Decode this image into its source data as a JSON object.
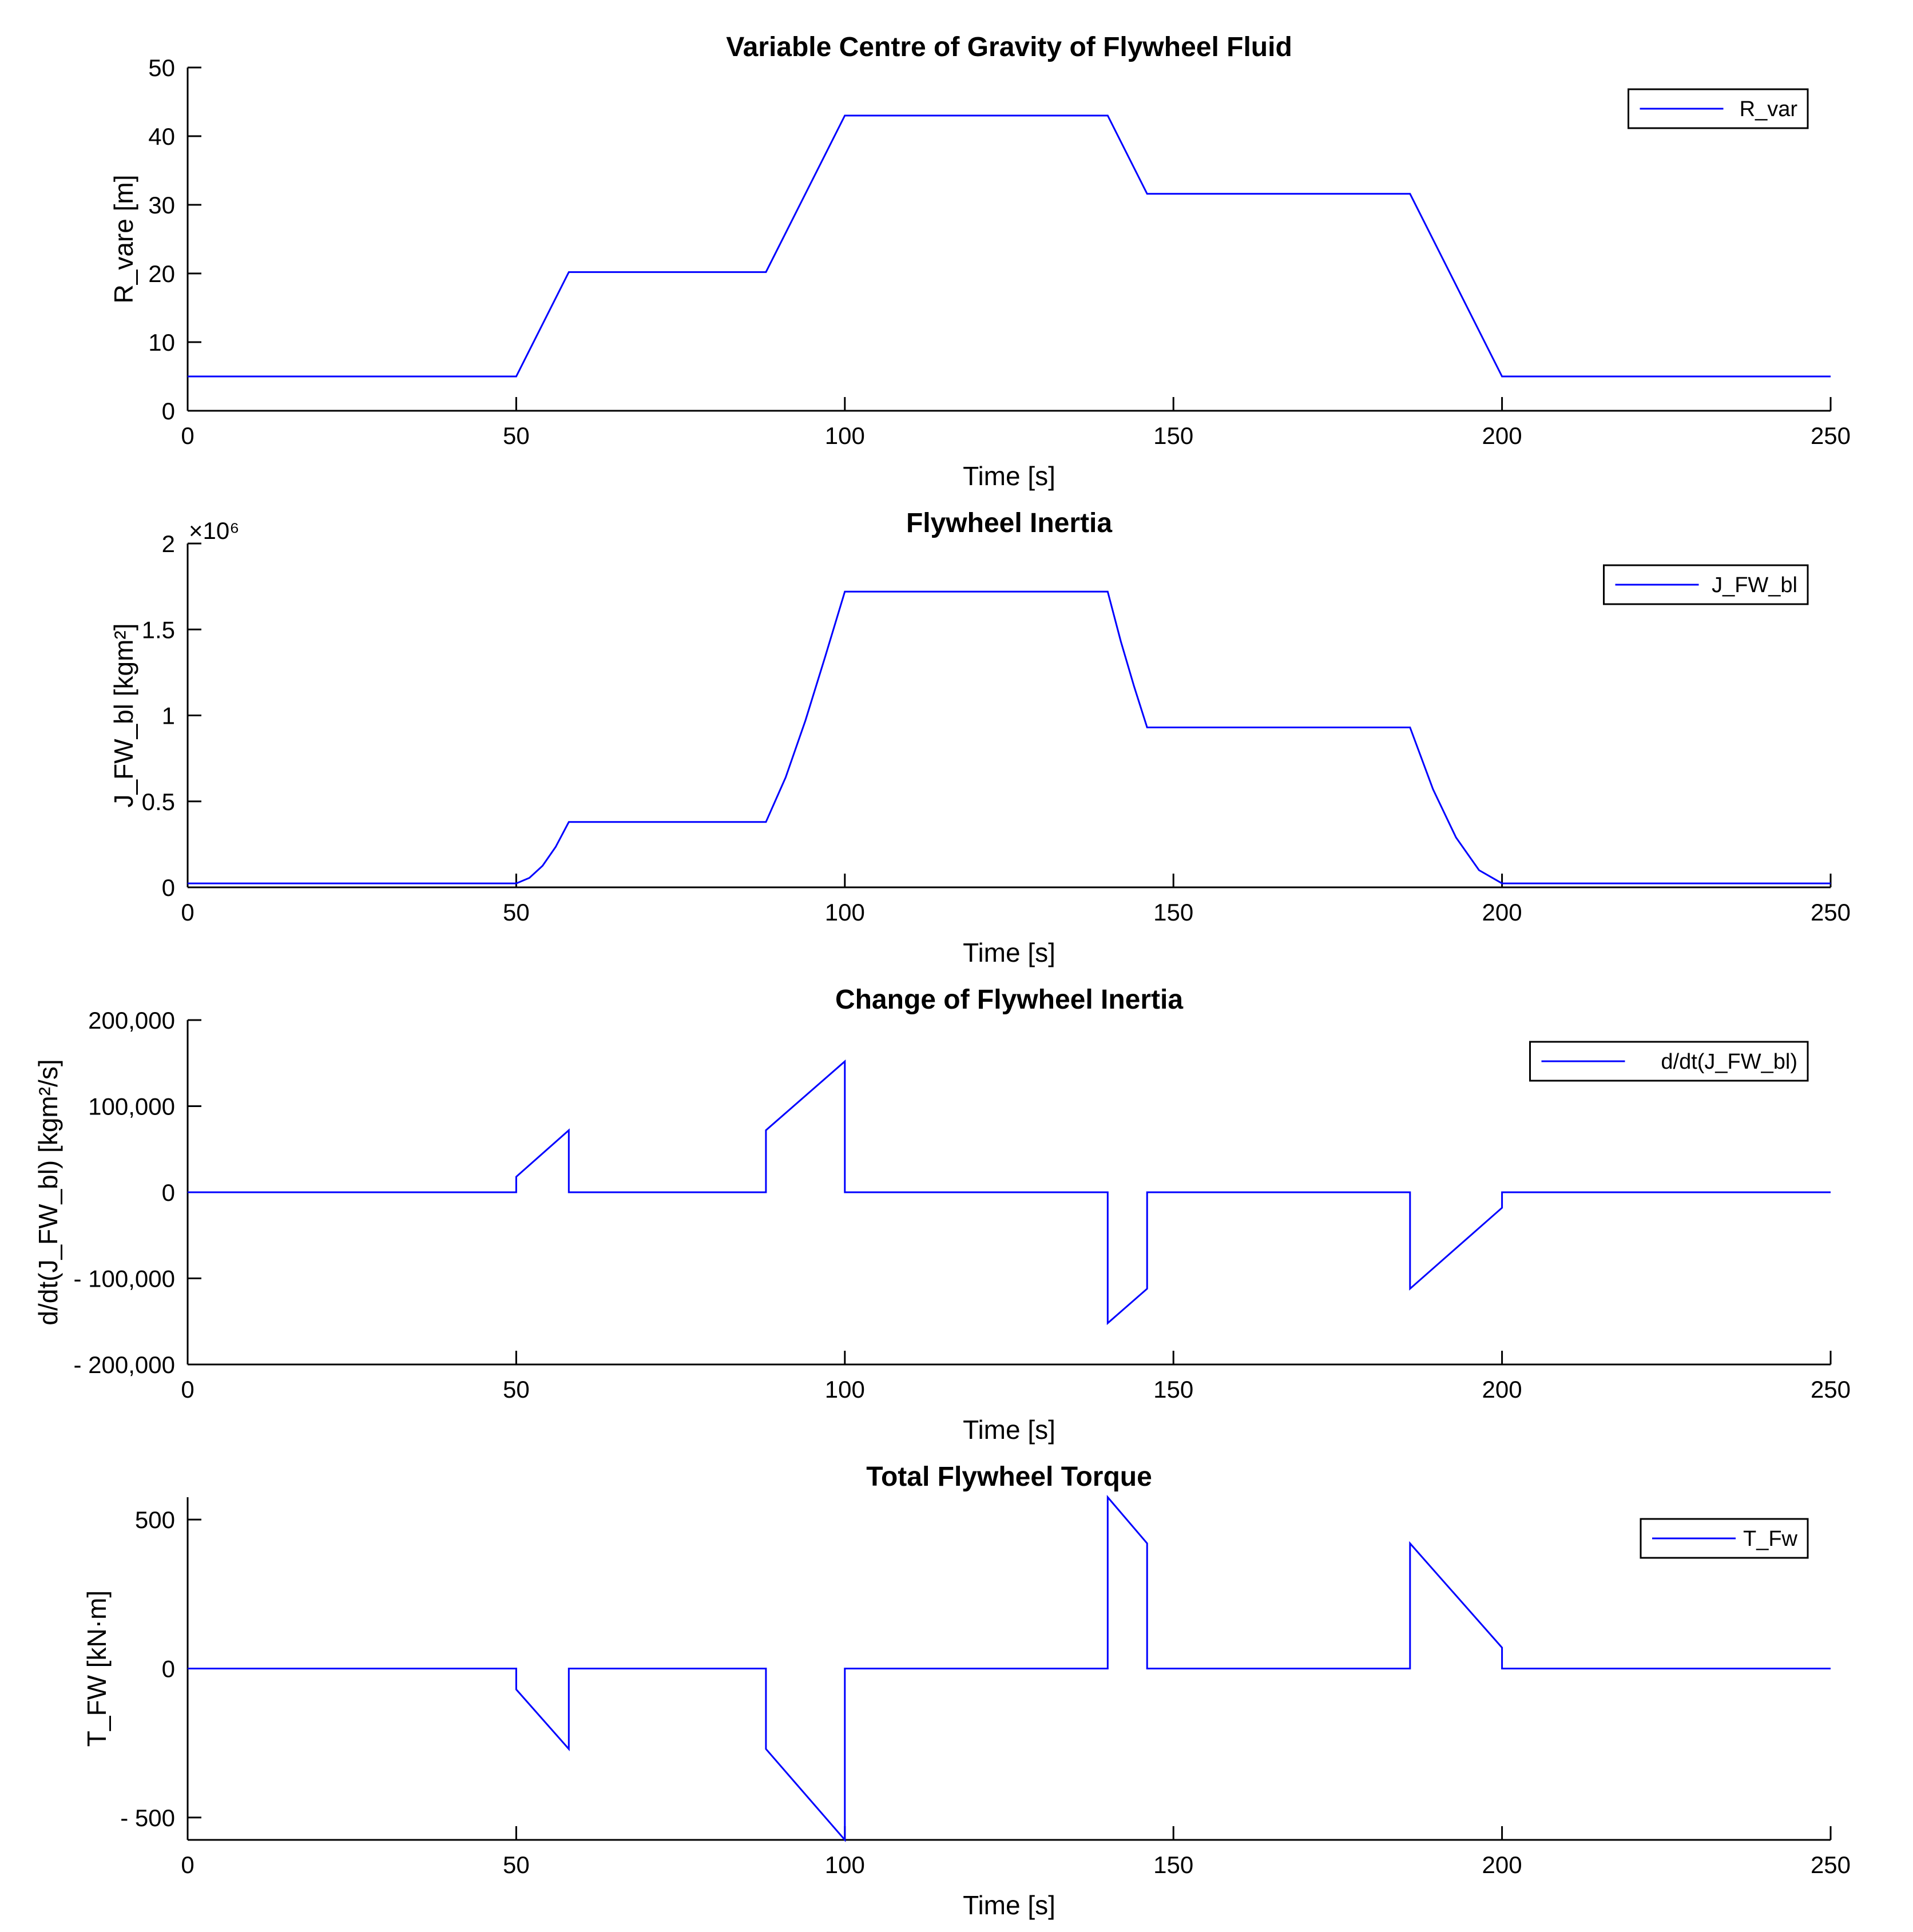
{
  "chart_data": [
    {
      "type": "line",
      "title": "Variable Centre of Gravity of Flywheel Fluid",
      "xlabel": "Time [s]",
      "ylabel": "R_vare  [m]",
      "xlim": [
        0,
        250
      ],
      "ylim": [
        0,
        50
      ],
      "xticks": [
        0,
        50,
        100,
        150,
        200,
        250
      ],
      "yticks": [
        0,
        10,
        20,
        30,
        40,
        50
      ],
      "ytick_labels": [
        "0",
        "10",
        "20",
        "30",
        "40",
        "50"
      ],
      "legend": "top-right",
      "series": [
        {
          "name": "R_var",
          "x": [
            0,
            50,
            58,
            88,
            100,
            140,
            146,
            186,
            200,
            250
          ],
          "y": [
            5,
            5,
            20.2,
            20.2,
            43,
            43,
            31.6,
            31.6,
            5,
            5
          ]
        }
      ]
    },
    {
      "type": "line",
      "title": "Flywheel Inertia",
      "xlabel": "Time [s]",
      "ylabel": "J_FW_bl  [kgm²]",
      "exponent_label": "×10⁶",
      "xlim": [
        0,
        250
      ],
      "ylim": [
        0,
        2
      ],
      "xticks": [
        0,
        50,
        100,
        150,
        200,
        250
      ],
      "yticks": [
        0,
        0.5,
        1,
        1.5,
        2
      ],
      "ytick_labels": [
        "0",
        "0.5",
        "1",
        "1.5",
        "2"
      ],
      "legend": "top-right",
      "series": [
        {
          "name": "J_FW_bl",
          "x": [
            0,
            50,
            52,
            54,
            56,
            58,
            88,
            91,
            94,
            97,
            100,
            140,
            142,
            144,
            146,
            186,
            189.5,
            193,
            196.5,
            200,
            250
          ],
          "y": [
            0.023,
            0.023,
            0.055,
            0.125,
            0.235,
            0.38,
            0.38,
            0.64,
            0.97,
            1.34,
            1.72,
            1.72,
            1.43,
            1.17,
            0.93,
            0.93,
            0.57,
            0.29,
            0.1,
            0.023,
            0.023
          ]
        }
      ]
    },
    {
      "type": "line",
      "title": "Change of Flywheel Inertia",
      "xlabel": "Time [s]",
      "ylabel": "d/dt(J_FW_bl)  [kgm²/s]",
      "xlim": [
        0,
        250
      ],
      "ylim": [
        -200000,
        200000
      ],
      "xticks": [
        0,
        50,
        100,
        150,
        200,
        250
      ],
      "yticks": [
        -200000,
        -100000,
        0,
        100000,
        200000
      ],
      "ytick_labels": [
        "- 200,000",
        "- 100,000",
        "0",
        "100,000",
        "200,000"
      ],
      "legend": "top-right",
      "series": [
        {
          "name": "d/dt(J_FW_bl)",
          "x": [
            0,
            50,
            50,
            58,
            58,
            88,
            88,
            100,
            100,
            140,
            140,
            146,
            146,
            186,
            186,
            200,
            200,
            250
          ],
          "y": [
            0,
            0,
            18000,
            72000,
            0,
            0,
            72000,
            152000,
            0,
            0,
            -152000,
            -112000,
            0,
            0,
            -112000,
            -18000,
            0,
            0
          ]
        }
      ]
    },
    {
      "type": "line",
      "title": "Total Flywheel Torque",
      "xlabel": "Time [s]",
      "ylabel": "T_FW [kN·m]",
      "xlim": [
        0,
        250
      ],
      "ylim": [
        -575,
        575
      ],
      "xticks": [
        0,
        50,
        100,
        150,
        200,
        250
      ],
      "yticks": [
        -500,
        0,
        500
      ],
      "ytick_labels": [
        "- 500",
        "0",
        "500"
      ],
      "legend": "top-right",
      "series": [
        {
          "name": "T_Fw",
          "x": [
            0,
            50,
            50,
            58,
            58,
            88,
            88,
            100,
            100,
            140,
            140,
            146,
            146,
            186,
            186,
            200,
            200,
            250
          ],
          "y": [
            0,
            0,
            -70,
            -270,
            0,
            0,
            -270,
            -575,
            0,
            0,
            575,
            420,
            0,
            0,
            420,
            70,
            0,
            0
          ]
        }
      ]
    }
  ]
}
